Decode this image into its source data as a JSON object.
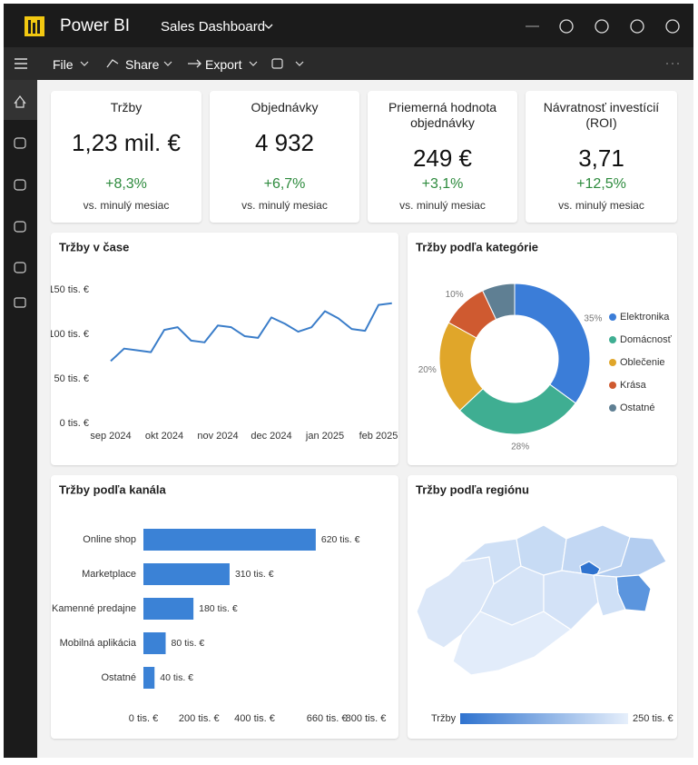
{
  "header": {
    "app": "Power BI",
    "report": "Sales Dashboard",
    "menu": [
      "File",
      "Share",
      "Export"
    ]
  },
  "kpis": [
    {
      "title": "Tržby",
      "value": "1,23 mil. €",
      "change": "+8,3%",
      "note": "vs. minulý mesiac"
    },
    {
      "title": "Objednávky",
      "value": "4 932",
      "change": "+6,7%",
      "note": "vs. minulý mesiac"
    },
    {
      "title": "Priemerná hodnota objednávky",
      "value": "249 €",
      "change": "+3,1%",
      "note": "vs. minulý mesiac"
    },
    {
      "title": "Návratnosť investícií (ROI)",
      "value": "3,71",
      "change": "+12,5%",
      "note": "vs. minulý mesiac"
    }
  ],
  "chart_data": [
    {
      "type": "line",
      "title": "Tržby v čase",
      "categories": [
        "sep 2024",
        null,
        null,
        null,
        "okt 2024",
        null,
        null,
        null,
        "nov 2024",
        null,
        null,
        null,
        "dec 2024",
        null,
        null,
        null,
        "jan 2025",
        null,
        null,
        null,
        "feb 2025",
        null
      ],
      "values": [
        70,
        84,
        82,
        80,
        105,
        108,
        93,
        91,
        110,
        108,
        98,
        96,
        119,
        112,
        103,
        108,
        126,
        118,
        106,
        104,
        133,
        135
      ],
      "color": "#3a7dc9",
      "ylim": [
        0,
        150
      ],
      "yticks": [
        {
          "value": 0,
          "label": "0 tis. €"
        },
        {
          "value": 50,
          "label": "50 tis. €"
        },
        {
          "value": 100,
          "label": "100 tis. €"
        },
        {
          "value": 150,
          "label": "150 tis. €"
        }
      ],
      "grid": false
    },
    {
      "type": "donut",
      "title": "Tržby podľa kategórie",
      "categories": [
        "Elektronika",
        "Domácnosť",
        "Oblečenie",
        "Krása",
        "Ostatné"
      ],
      "values": [
        35,
        28,
        20,
        10,
        7
      ],
      "value_labels": [
        "35%",
        "28%",
        "20%",
        "10%",
        null
      ],
      "colors": [
        "#3b7dd8",
        "#3fae92",
        "#e0a62a",
        "#cf5a30",
        "#5f7f93"
      ],
      "legend": "right"
    },
    {
      "type": "bar",
      "orientation": "horizontal",
      "title": "Tržby podľa kanála",
      "categories": [
        "Online shop",
        "Marketplace",
        "Kamenné predajne",
        "Mobilná aplikácia",
        "Ostatné"
      ],
      "values": [
        620,
        310,
        180,
        80,
        40
      ],
      "value_labels": [
        "620 tis. €",
        "310 tis. €",
        "180 tis. €",
        "80 tis. €",
        "40 tis. €"
      ],
      "color": "#3b82d6",
      "xlim": [
        0,
        800
      ],
      "xticks": [
        {
          "value": 0,
          "label": "0 tis. €"
        },
        {
          "value": 200,
          "label": "200 tis. €"
        },
        {
          "value": 400,
          "label": "400 tis. €"
        },
        {
          "value": 660,
          "label": "660 tis. €"
        },
        {
          "value": 800,
          "label": "800 tis. €"
        }
      ]
    },
    {
      "type": "map",
      "title": "Tržby podľa regiónu",
      "legend_title": "Tržby",
      "scale_max": {
        "value": 250,
        "label": "250 tis. €"
      }
    }
  ]
}
